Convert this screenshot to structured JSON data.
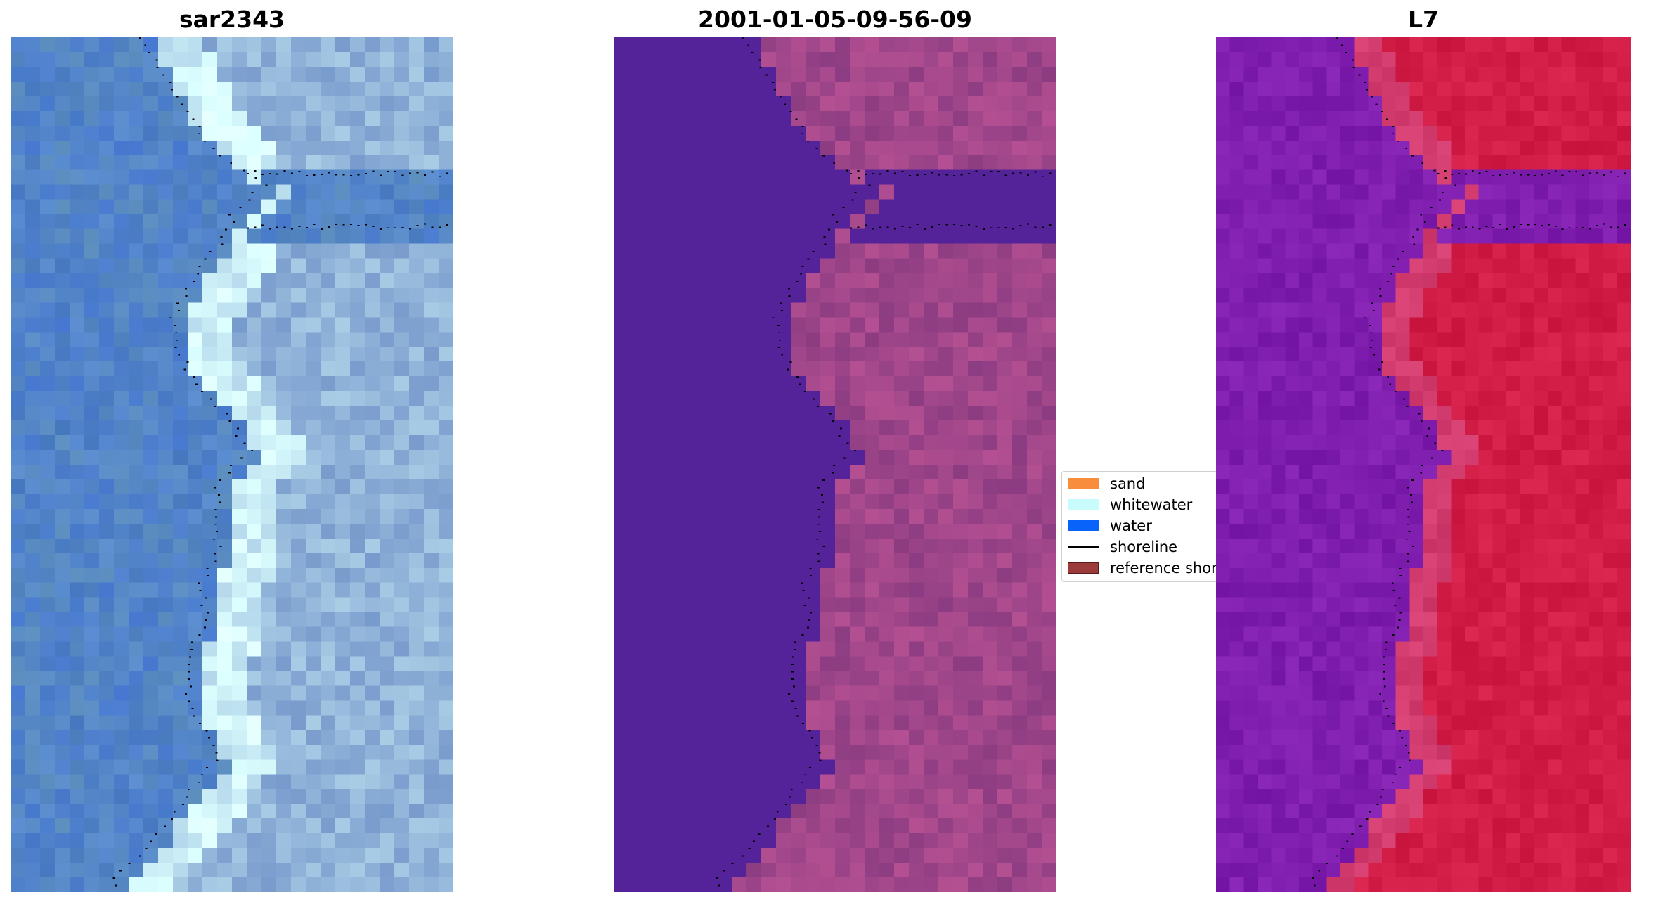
{
  "panels": [
    {
      "title": "sar2343",
      "palette": "rgb"
    },
    {
      "title": "2001-01-05-09-56-09",
      "palette": "classified"
    },
    {
      "title": "L7",
      "palette": "index"
    }
  ],
  "legend": {
    "items": [
      {
        "label": "sand",
        "color": "#f88d3c",
        "kind": "patch"
      },
      {
        "label": "whitewater",
        "color": "#c8fbfb",
        "kind": "patch"
      },
      {
        "label": "water",
        "color": "#0763f9",
        "kind": "patch"
      },
      {
        "label": "shoreline",
        "color": "#000000",
        "kind": "line"
      },
      {
        "label": "reference shoreline",
        "color": "#9a3a3a",
        "kind": "patch"
      }
    ]
  }
}
